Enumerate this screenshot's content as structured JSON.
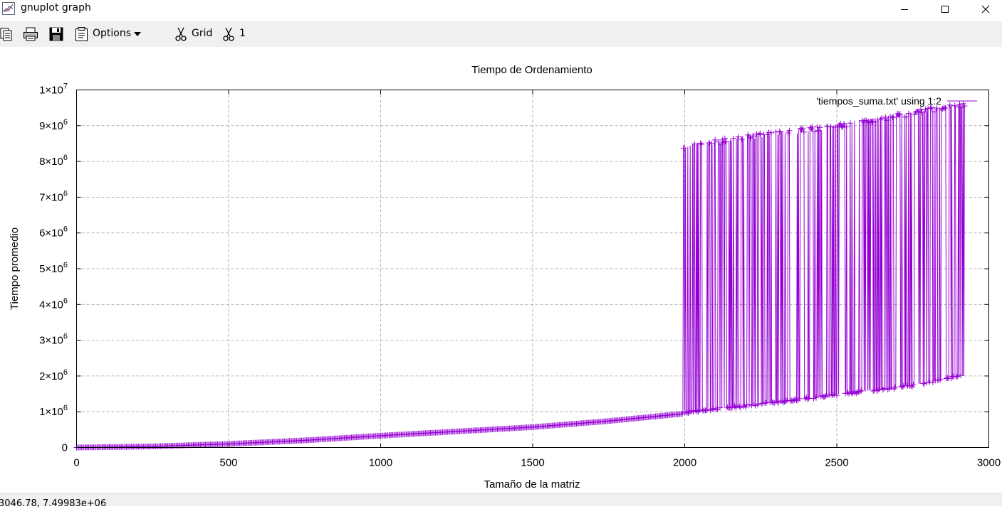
{
  "window": {
    "title": "gnuplot graph",
    "app_icon": "gnuplot-graph-icon",
    "controls": [
      "minimize-icon",
      "maximize-icon",
      "close-icon"
    ]
  },
  "toolbar": {
    "items": [
      {
        "icon": "copy-clipboard-icon"
      },
      {
        "icon": "print-icon"
      },
      {
        "icon": "save-icon"
      },
      {
        "icon": "options-icon",
        "label": "Options",
        "dropdown": true
      },
      {
        "icon": "scissors-icon",
        "label": "Grid"
      },
      {
        "icon": "scissors-icon",
        "label": "1"
      }
    ]
  },
  "colors": {
    "series": "#9400d3",
    "grid": "#a0a0a0"
  },
  "chart_data": {
    "type": "line",
    "title": "Tiempo de Ordenamiento",
    "xlabel": "Tamaño de la matriz",
    "ylabel": "Tiempo promedio",
    "xlim": [
      0,
      3000
    ],
    "ylim": [
      0,
      10000000
    ],
    "x_ticks": [
      "0",
      "500",
      "1000",
      "1500",
      "2000",
      "2500",
      "3000"
    ],
    "y_ticks": [
      {
        "mantissa": "0",
        "exp": ""
      },
      {
        "mantissa": "1×10",
        "exp": "6"
      },
      {
        "mantissa": "2×10",
        "exp": "6"
      },
      {
        "mantissa": "3×10",
        "exp": "6"
      },
      {
        "mantissa": "4×10",
        "exp": "6"
      },
      {
        "mantissa": "5×10",
        "exp": "6"
      },
      {
        "mantissa": "6×10",
        "exp": "6"
      },
      {
        "mantissa": "7×10",
        "exp": "6"
      },
      {
        "mantissa": "8×10",
        "exp": "6"
      },
      {
        "mantissa": "9×10",
        "exp": "6"
      },
      {
        "mantissa": "1×10",
        "exp": "7"
      }
    ],
    "grid": true,
    "legend": {
      "position": "top-right"
    },
    "series": [
      {
        "name": "'tiempos_suma.txt' using 1:2",
        "style": "linespoints",
        "marker": "plus",
        "lower_curve": {
          "x": [
            0,
            250,
            500,
            750,
            1000,
            1250,
            1500,
            1750,
            2000,
            2250,
            2500,
            2750,
            2920
          ],
          "y": [
            0,
            30000,
            100000,
            200000,
            330000,
            450000,
            570000,
            740000,
            950000,
            1180000,
            1450000,
            1700000,
            2000000
          ]
        },
        "upper_branch": {
          "x": [
            1995,
            2100,
            2200,
            2300,
            2400,
            2500,
            2600,
            2700,
            2800,
            2920
          ],
          "y": [
            8500000,
            8600000,
            8750000,
            8850000,
            8950000,
            9050000,
            9200000,
            9350000,
            9500000,
            9650000
          ]
        }
      }
    ]
  },
  "status": {
    "coordinates": "3046.78, 7.49983e+06"
  }
}
